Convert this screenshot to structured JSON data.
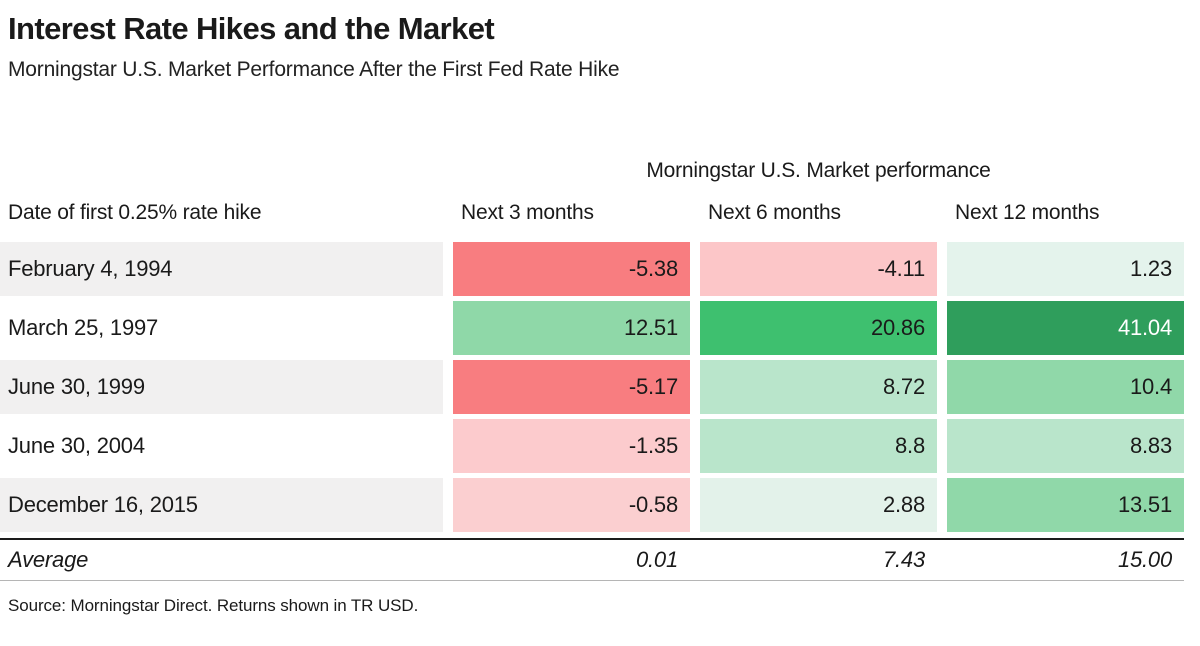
{
  "header": {
    "title": "Interest Rate Hikes and the Market",
    "subtitle": "Morningstar U.S. Market Performance After the First Fed Rate Hike"
  },
  "table": {
    "group_header": "Morningstar U.S. Market performance",
    "columns": [
      "Date of first 0.25% rate hike",
      "Next 3 months",
      "Next 6 months",
      "Next 12 months"
    ],
    "rows": [
      {
        "date": "February 4, 1994",
        "values": [
          "-5.38",
          "-4.11",
          "1.23"
        ],
        "colors": [
          "#f87d80",
          "#fcc6c8",
          "#e4f3ec"
        ],
        "text_colors": [
          "#1a1a1a",
          "#1a1a1a",
          "#1a1a1a"
        ]
      },
      {
        "date": "March 25, 1997",
        "values": [
          "12.51",
          "20.86",
          "41.04"
        ],
        "colors": [
          "#8fd8a8",
          "#3ec06f",
          "#2f9e5c"
        ],
        "text_colors": [
          "#1a1a1a",
          "#1a1a1a",
          "#ffffff"
        ]
      },
      {
        "date": "June 30, 1999",
        "values": [
          "-5.17",
          "8.72",
          "10.4"
        ],
        "colors": [
          "#f87d80",
          "#b9e5cb",
          "#90d8a9"
        ],
        "text_colors": [
          "#1a1a1a",
          "#1a1a1a",
          "#1a1a1a"
        ]
      },
      {
        "date": "June 30, 2004",
        "values": [
          "-1.35",
          "8.8",
          "8.83"
        ],
        "colors": [
          "#fccbcd",
          "#b9e5cb",
          "#b9e5cb"
        ],
        "text_colors": [
          "#1a1a1a",
          "#1a1a1a",
          "#1a1a1a"
        ]
      },
      {
        "date": "December 16, 2015",
        "values": [
          "-0.58",
          "2.88",
          "13.51"
        ],
        "colors": [
          "#fbcfd0",
          "#e3f2ea",
          "#90d8a9"
        ],
        "text_colors": [
          "#1a1a1a",
          "#1a1a1a",
          "#1a1a1a"
        ]
      }
    ],
    "average": {
      "label": "Average",
      "values": [
        "0.01",
        "7.43",
        "15.00"
      ]
    }
  },
  "footer": {
    "source": "Source: Morningstar Direct. Returns shown in TR USD."
  },
  "chart_data": {
    "type": "heatmap",
    "title": "Interest Rate Hikes and the Market",
    "subtitle": "Morningstar U.S. Market Performance After the First Fed Rate Hike",
    "group_header": "Morningstar U.S. Market performance",
    "row_label_header": "Date of first 0.25% rate hike",
    "columns": [
      "Next 3 months",
      "Next 6 months",
      "Next 12 months"
    ],
    "rows": [
      "February 4, 1994",
      "March 25, 1997",
      "June 30, 1999",
      "June 30, 2004",
      "December 16, 2015"
    ],
    "values": [
      [
        -5.38,
        -4.11,
        1.23
      ],
      [
        12.51,
        20.86,
        41.04
      ],
      [
        -5.17,
        8.72,
        10.4
      ],
      [
        -1.35,
        8.8,
        8.83
      ],
      [
        -0.58,
        2.88,
        13.51
      ]
    ],
    "average": [
      0.01,
      7.43,
      15.0
    ],
    "color_scale": {
      "negative": "#f87d80",
      "zero": "#ffffff",
      "positive": "#2f9e5c"
    },
    "source": "Source: Morningstar Direct. Returns shown in TR USD."
  }
}
